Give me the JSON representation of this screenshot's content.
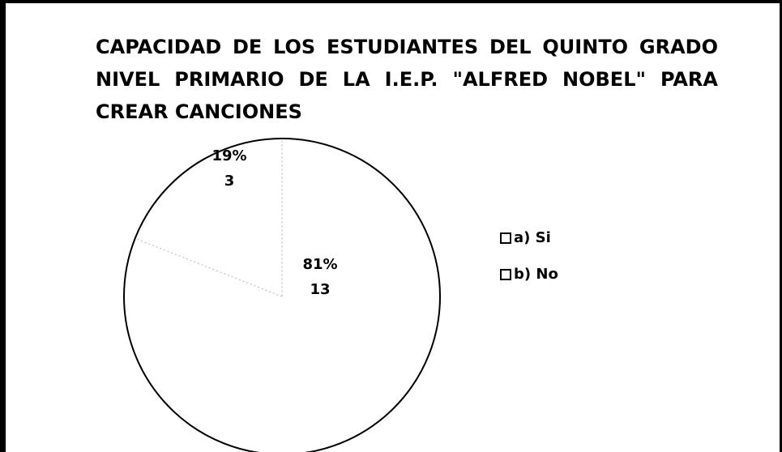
{
  "chart_data": {
    "type": "pie",
    "title": "CAPACIDAD DE LOS ESTUDIANTES DEL QUINTO GRADO NIVEL PRIMARIO DE LA I.E.P. \"ALFRED NOBEL\" PARA CREAR CANCIONES",
    "categories": [
      "a) Si",
      "b) No"
    ],
    "values": [
      81,
      19
    ],
    "value_labels": [
      "81%",
      "19%"
    ],
    "counts": [
      13,
      3
    ],
    "colors": [
      "#ffffff",
      "#ffffff"
    ],
    "legend": "right"
  }
}
